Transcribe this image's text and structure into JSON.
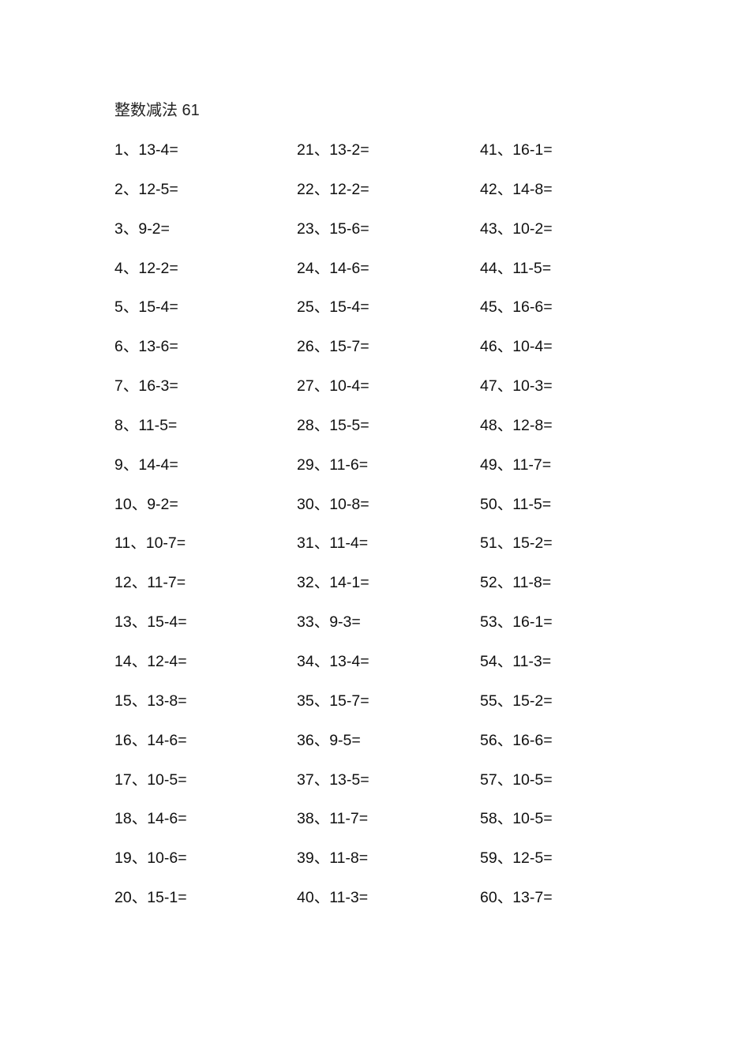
{
  "document": {
    "title": "整数减法 61",
    "columns": [
      [
        "1、13-4=",
        "2、12-5=",
        "3、9-2=",
        "4、12-2=",
        "5、15-4=",
        "6、13-6=",
        "7、16-3=",
        "8、11-5=",
        "9、14-4=",
        "10、9-2=",
        "11、10-7=",
        "12、11-7=",
        "13、15-4=",
        "14、12-4=",
        "15、13-8=",
        "16、14-6=",
        "17、10-5=",
        "18、14-6=",
        "19、10-6=",
        "20、15-1="
      ],
      [
        "21、13-2=",
        "22、12-2=",
        "23、15-6=",
        "24、14-6=",
        "25、15-4=",
        "26、15-7=",
        "27、10-4=",
        "28、15-5=",
        "29、11-6=",
        "30、10-8=",
        "31、11-4=",
        "32、14-1=",
        "33、9-3=",
        "34、13-4=",
        "35、15-7=",
        "36、9-5=",
        "37、13-5=",
        "38、11-7=",
        "39、11-8=",
        "40、11-3="
      ],
      [
        "41、16-1=",
        "42、14-8=",
        "43、10-2=",
        "44、11-5=",
        "45、16-6=",
        "46、10-4=",
        "47、10-3=",
        "48、12-8=",
        "49、11-7=",
        "50、11-5=",
        "51、15-2=",
        "52、11-8=",
        "53、16-1=",
        "54、11-3=",
        "55、15-2=",
        "56、16-6=",
        "57、10-5=",
        "58、10-5=",
        "59、12-5=",
        "60、13-7="
      ]
    ]
  }
}
